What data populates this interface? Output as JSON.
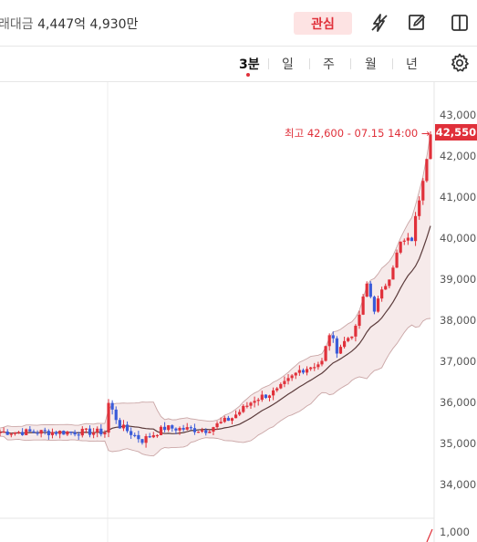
{
  "header": {
    "trade_amount_label": "래대금",
    "trade_amount_value": "4,447억 4,930만",
    "favorite_label": "관심",
    "icons": [
      "flash-off-icon",
      "edit-icon",
      "split-view-icon"
    ]
  },
  "tabs": {
    "items": [
      {
        "label": "3분",
        "active": true
      },
      {
        "label": "일",
        "active": false
      },
      {
        "label": "주",
        "active": false
      },
      {
        "label": "월",
        "active": false
      },
      {
        "label": "년",
        "active": false
      }
    ],
    "settings_icon": "gear-icon"
  },
  "chart": {
    "y_ticks": [
      "43,000",
      "42,000",
      "41,000",
      "40,000",
      "39,000",
      "38,000",
      "37,000",
      "36,000",
      "35,000",
      "34,000"
    ],
    "current_price": "42,550",
    "high_note": "최고 42,600 - 07.15 14:00 →",
    "volume_tick": "1,000",
    "colors": {
      "up": "#e0303a",
      "down": "#3a5bd9",
      "band_fill": "#f6eaea",
      "band_line": "#caa6a6",
      "ma_line": "#5b3b3b"
    }
  },
  "chart_data": {
    "type": "candlestick",
    "ylim": [
      33600,
      43300
    ],
    "y_ticks": [
      43000,
      42000,
      41000,
      40000,
      39000,
      38000,
      37000,
      36000,
      35000,
      34000
    ],
    "current": 42550,
    "high": 42600,
    "high_time": "07.15 14:00"
  }
}
